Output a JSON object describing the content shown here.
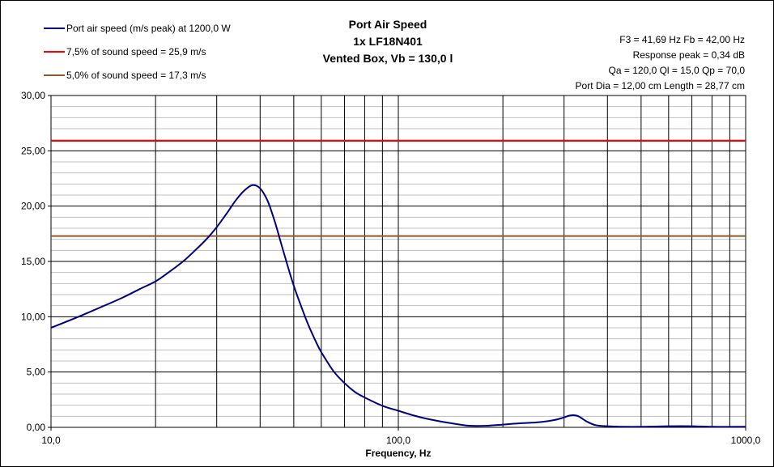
{
  "chart_data": {
    "type": "line",
    "title": [
      "Port Air Speed",
      "1x LF18N401",
      "Vented Box, Vb = 130,0 l"
    ],
    "xlabel": "Frequency, Hz",
    "ylabel": "",
    "xscale": "log",
    "xlim": [
      10,
      1000
    ],
    "ylim": [
      0,
      30
    ],
    "grid": true,
    "legend_position": "top-left",
    "x_tick_labels": [
      "10,0",
      "100,0",
      "1000,0"
    ],
    "y_tick_labels": [
      "0,00",
      "5,00",
      "10,00",
      "15,00",
      "20,00",
      "25,00",
      "30,00"
    ],
    "info_lines": [
      "F3 = 41,69 Hz  Fb = 42,00 Hz",
      "Response peak = 0,34 dB",
      "Qa = 120,0  Ql = 15,0  Qp = 70,0",
      "Port Dia = 12,00 cm  Length = 28,77 cm"
    ],
    "series": [
      {
        "name": "Port air speed (m/s peak) at 1200,0 W",
        "color": "#000080",
        "kind": "curve",
        "x": [
          10,
          12,
          14,
          16,
          18,
          20,
          22,
          24,
          26,
          28,
          30,
          32,
          34,
          36,
          38,
          40,
          42,
          44,
          46,
          48,
          50,
          52,
          55,
          58,
          60,
          65,
          70,
          75,
          80,
          90,
          100,
          110,
          120,
          140,
          160,
          180,
          200,
          220,
          250,
          280,
          300,
          310,
          320,
          330,
          340,
          350,
          370,
          400,
          450,
          500,
          600,
          700,
          800,
          1000
        ],
        "y": [
          9.0,
          10.0,
          10.9,
          11.7,
          12.5,
          13.2,
          14.1,
          15.0,
          16.0,
          17.0,
          18.1,
          19.3,
          20.5,
          21.4,
          21.9,
          21.6,
          20.5,
          18.7,
          16.6,
          14.6,
          12.8,
          11.3,
          9.3,
          7.7,
          6.8,
          5.1,
          4.0,
          3.2,
          2.7,
          1.95,
          1.5,
          1.1,
          0.8,
          0.4,
          0.15,
          0.15,
          0.25,
          0.35,
          0.45,
          0.65,
          0.9,
          1.05,
          1.1,
          1.0,
          0.75,
          0.5,
          0.2,
          0.1,
          0.05,
          0.05,
          0.1,
          0.1,
          0.05,
          0.05
        ]
      },
      {
        "name": "7,5% of sound speed = 25,9 m/s",
        "color": "#ff0000",
        "kind": "hline",
        "value": 25.9
      },
      {
        "name": "5,0% of sound speed = 17,3 m/s",
        "color": "#8b5a2b",
        "kind": "hline",
        "value": 17.3
      }
    ]
  }
}
